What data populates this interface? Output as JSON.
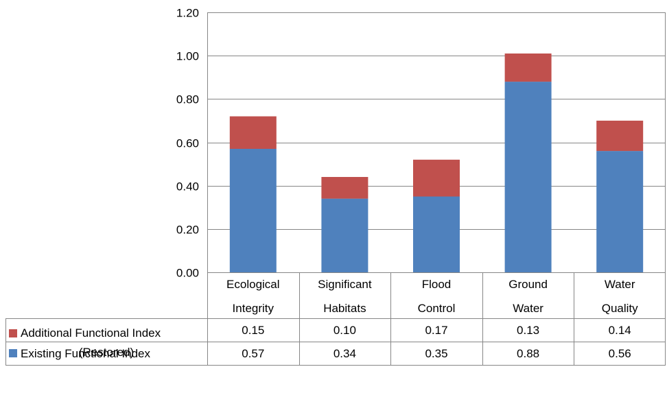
{
  "chart_data": {
    "type": "bar",
    "stacked": true,
    "categories": [
      [
        "Ecological",
        "Integrity"
      ],
      [
        "Significant",
        "Habitats"
      ],
      [
        "Flood",
        "Control"
      ],
      [
        "Ground",
        "Water"
      ],
      [
        "Water",
        "Quality"
      ]
    ],
    "series": [
      {
        "name": "Existing Functional Index",
        "values": [
          0.57,
          0.34,
          0.35,
          0.88,
          0.56
        ],
        "color": "#4f81bd"
      },
      {
        "name": [
          "Additional Functional Index",
          "(Restored)"
        ],
        "values": [
          0.15,
          0.1,
          0.17,
          0.13,
          0.14
        ],
        "color": "#c0504d"
      }
    ],
    "ylim": [
      0,
      1.2
    ],
    "yticks": [
      "0.00",
      "0.20",
      "0.40",
      "0.60",
      "0.80",
      "1.00",
      "1.20"
    ],
    "table_rows": [
      {
        "legend": [
          "Additional Functional Index",
          "(Restored)"
        ],
        "color": "#c0504d",
        "cells": [
          "0.15",
          "0.10",
          "0.17",
          "0.13",
          "0.14"
        ]
      },
      {
        "legend": [
          "Existing Functional Index"
        ],
        "color": "#4f81bd",
        "cells": [
          "0.57",
          "0.34",
          "0.35",
          "0.88",
          "0.56"
        ]
      }
    ],
    "gridlines": true,
    "legend_position": "data-table"
  }
}
